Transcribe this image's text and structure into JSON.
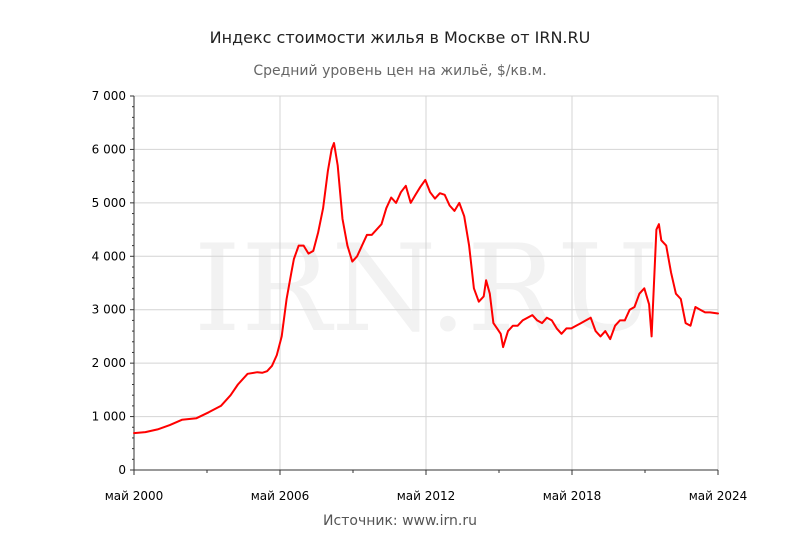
{
  "title": "Индекс стоимости жилья в Москве от IRN.RU",
  "subtitle": "Средний уровень цен на жильё, $/кв.м.",
  "source": "Источник: www.irn.ru",
  "watermark": "IRN.RU",
  "line_color": "#ff0000",
  "chart_data": {
    "type": "line",
    "title": "Индекс стоимости жилья в Москве от IRN.RU",
    "subtitle": "Средний уровень цен на жильё, $/кв.м.",
    "xlabel": "",
    "ylabel": "",
    "ylim": [
      0,
      7000
    ],
    "xlim": [
      2000.33,
      2024.33
    ],
    "yticks": [
      {
        "value": 0,
        "label": "0"
      },
      {
        "value": 1000,
        "label": "1 000"
      },
      {
        "value": 2000,
        "label": "2 000"
      },
      {
        "value": 3000,
        "label": "3 000"
      },
      {
        "value": 4000,
        "label": "4 000"
      },
      {
        "value": 5000,
        "label": "5 000"
      },
      {
        "value": 6000,
        "label": "6 000"
      },
      {
        "value": 7000,
        "label": "7 000"
      }
    ],
    "xticks": [
      {
        "value": 2000.33,
        "label": "май 2000"
      },
      {
        "value": 2006.33,
        "label": "май 2006"
      },
      {
        "value": 2012.33,
        "label": "май 2012"
      },
      {
        "value": 2018.33,
        "label": "май 2018"
      },
      {
        "value": 2024.33,
        "label": "май 2024"
      }
    ],
    "grid": true,
    "series": [
      {
        "color": "#ff0000",
        "x": [
          2000.33,
          2000.8,
          2001.3,
          2001.8,
          2002.3,
          2002.9,
          2003.4,
          2003.9,
          2004.3,
          2004.6,
          2005.0,
          2005.4,
          2005.6,
          2005.8,
          2006.0,
          2006.2,
          2006.4,
          2006.6,
          2006.8,
          2006.9,
          2007.1,
          2007.3,
          2007.5,
          2007.7,
          2007.9,
          2008.1,
          2008.3,
          2008.45,
          2008.55,
          2008.7,
          2008.9,
          2009.1,
          2009.3,
          2009.5,
          2009.7,
          2009.9,
          2010.1,
          2010.3,
          2010.5,
          2010.7,
          2010.9,
          2011.1,
          2011.3,
          2011.5,
          2011.7,
          2011.9,
          2012.1,
          2012.3,
          2012.5,
          2012.7,
          2012.9,
          2013.1,
          2013.3,
          2013.5,
          2013.7,
          2013.9,
          2014.1,
          2014.3,
          2014.5,
          2014.7,
          2014.8,
          2014.95,
          2015.1,
          2015.25,
          2015.4,
          2015.5,
          2015.7,
          2015.9,
          2016.1,
          2016.3,
          2016.5,
          2016.7,
          2016.9,
          2017.1,
          2017.3,
          2017.5,
          2017.7,
          2017.9,
          2018.1,
          2018.3,
          2018.5,
          2018.7,
          2018.9,
          2019.1,
          2019.3,
          2019.5,
          2019.7,
          2019.9,
          2020.1,
          2020.3,
          2020.5,
          2020.7,
          2020.9,
          2021.1,
          2021.3,
          2021.5,
          2021.6,
          2021.7,
          2021.8,
          2021.9,
          2022.0,
          2022.2,
          2022.4,
          2022.6,
          2022.8,
          2023.0,
          2023.2,
          2023.4,
          2023.6,
          2023.8,
          2024.0,
          2024.33
        ],
        "values": [
          690,
          710,
          760,
          840,
          940,
          970,
          1080,
          1200,
          1400,
          1600,
          1800,
          1830,
          1820,
          1850,
          1950,
          2150,
          2500,
          3200,
          3700,
          3950,
          4200,
          4200,
          4050,
          4100,
          4450,
          4900,
          5600,
          6000,
          6120,
          5700,
          4700,
          4200,
          3900,
          4000,
          4200,
          4400,
          4400,
          4500,
          4600,
          4900,
          5100,
          5000,
          5200,
          5320,
          5000,
          5150,
          5300,
          5430,
          5200,
          5080,
          5180,
          5150,
          4950,
          4850,
          5000,
          4750,
          4200,
          3400,
          3150,
          3250,
          3550,
          3300,
          2750,
          2650,
          2550,
          2300,
          2600,
          2700,
          2700,
          2800,
          2850,
          2900,
          2800,
          2750,
          2850,
          2800,
          2650,
          2550,
          2650,
          2650,
          2700,
          2750,
          2800,
          2850,
          2600,
          2500,
          2600,
          2450,
          2700,
          2800,
          2800,
          3000,
          3050,
          3300,
          3400,
          3100,
          2500,
          3500,
          4500,
          4600,
          4300,
          4200,
          3700,
          3300,
          3200,
          2750,
          2700,
          3050,
          3000,
          2950,
          2950,
          2930
        ]
      }
    ]
  }
}
